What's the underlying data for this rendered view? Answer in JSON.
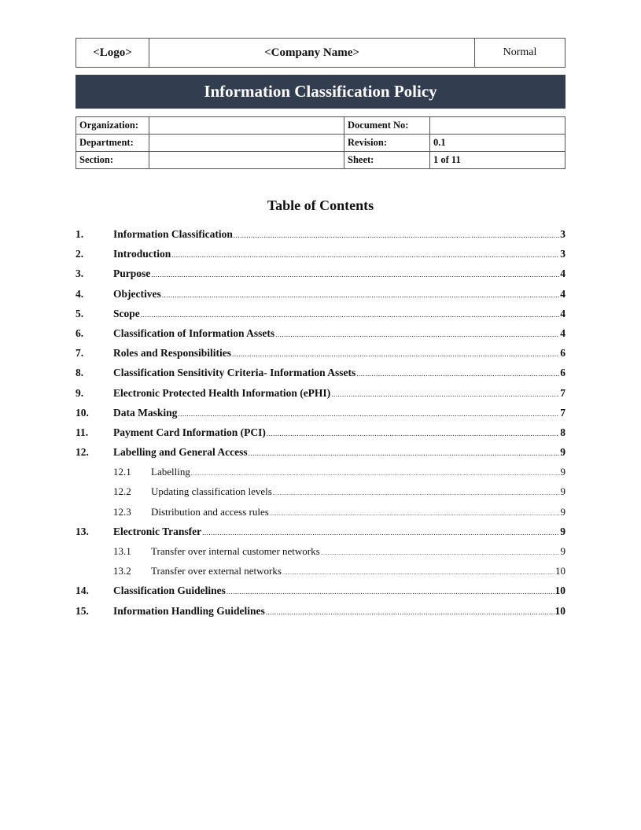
{
  "header": {
    "logo": "<Logo>",
    "company": "<Company Name>",
    "classification": "Normal"
  },
  "title": "Information Classification Policy",
  "info": {
    "organization_label": "Organization:",
    "organization_value": "",
    "department_label": "Department:",
    "department_value": "",
    "section_label": "Section:",
    "section_value": "",
    "document_no_label": "Document No:",
    "document_no_value": "",
    "revision_label": "Revision:",
    "revision_value": "0.1",
    "sheet_label": "Sheet:",
    "sheet_value": "1 of 11"
  },
  "toc": {
    "heading": "Table of Contents",
    "entries": [
      {
        "num": "1.",
        "title": "Information Classification",
        "page": "3",
        "level": 1
      },
      {
        "num": "2.",
        "title": "Introduction",
        "page": "3",
        "level": 1
      },
      {
        "num": "3.",
        "title": "Purpose",
        "page": "4",
        "level": 1
      },
      {
        "num": "4.",
        "title": "Objectives",
        "page": "4",
        "level": 1
      },
      {
        "num": "5.",
        "title": "Scope",
        "page": "4",
        "level": 1
      },
      {
        "num": "6.",
        "title": "Classification of Information Assets",
        "page": "4",
        "level": 1
      },
      {
        "num": "7.",
        "title": "Roles and Responsibilities",
        "page": "6",
        "level": 1
      },
      {
        "num": "8.",
        "title": "Classification Sensitivity Criteria- Information Assets",
        "page": "6",
        "level": 1
      },
      {
        "num": "9.",
        "title": "Electronic Protected Health Information (ePHI)",
        "page": "7",
        "level": 1
      },
      {
        "num": "10.",
        "title": "Data Masking",
        "page": "7",
        "level": 1
      },
      {
        "num": "11.",
        "title": "Payment Card Information (PCI)",
        "page": "8",
        "level": 1
      },
      {
        "num": "12.",
        "title": "Labelling and General Access",
        "page": "9",
        "level": 1
      },
      {
        "num": "12.1",
        "title": "Labelling",
        "page": "9",
        "level": 2
      },
      {
        "num": "12.2",
        "title": "Updating classification levels",
        "page": "9",
        "level": 2
      },
      {
        "num": "12.3",
        "title": "Distribution and access rules",
        "page": "9",
        "level": 2
      },
      {
        "num": "13.",
        "title": "Electronic Transfer",
        "page": "9",
        "level": 1
      },
      {
        "num": "13.1",
        "title": "Transfer over internal customer networks",
        "page": "9",
        "level": 2
      },
      {
        "num": "13.2",
        "title": "Transfer over external networks",
        "page": "10",
        "level": 2
      },
      {
        "num": "14.",
        "title": "Classification Guidelines",
        "page": "10",
        "level": 1
      },
      {
        "num": "15.",
        "title": "Information Handling Guidelines",
        "page": "10",
        "level": 1
      }
    ]
  },
  "colors": {
    "banner": "#323d4f"
  }
}
